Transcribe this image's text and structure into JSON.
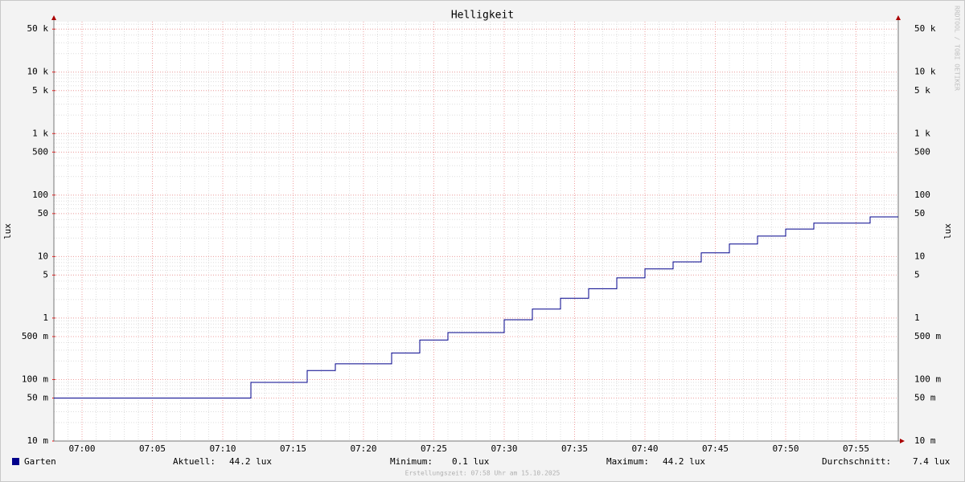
{
  "chart_data": {
    "type": "step",
    "title": "Helligkeit",
    "y_label": "lux",
    "watermark": "RRDTOOL / TOBI OETIKER",
    "log_scale": true,
    "grid": true,
    "xlim": [
      "06:58",
      "07:58"
    ],
    "xticks": [
      "07:00",
      "07:05",
      "07:10",
      "07:15",
      "07:20",
      "07:25",
      "07:30",
      "07:35",
      "07:40",
      "07:45",
      "07:50",
      "07:55"
    ],
    "ylim": [
      0.01,
      66000
    ],
    "yticks": [
      {
        "value": 0.01,
        "label": "10 m"
      },
      {
        "value": 0.05,
        "label": "50 m"
      },
      {
        "value": 0.1,
        "label": "100 m"
      },
      {
        "value": 0.5,
        "label": "500 m"
      },
      1,
      5,
      10,
      50,
      100,
      500,
      {
        "value": 1000,
        "label": "1 k"
      },
      {
        "value": 5000,
        "label": "5 k"
      },
      {
        "value": 10000,
        "label": "10 k"
      },
      {
        "value": 50000,
        "label": "50 k"
      }
    ],
    "x": [
      "06:58",
      "07:12",
      "07:16",
      "07:18",
      "07:22",
      "07:24",
      "07:26",
      "07:30",
      "07:32",
      "07:34",
      "07:36",
      "07:38",
      "07:40",
      "07:42",
      "07:44",
      "07:46",
      "07:48",
      "07:50",
      "07:52",
      "07:56"
    ],
    "series": [
      {
        "name": "Garten",
        "color": "#00008b",
        "values": [
          0.05,
          0.09,
          0.14,
          0.18,
          0.27,
          0.44,
          0.58,
          0.94,
          1.4,
          2.1,
          3.0,
          4.5,
          6.3,
          8.2,
          11.5,
          16,
          21.5,
          28,
          35,
          44.2
        ]
      }
    ],
    "stats": [
      {
        "label": "Aktuell:",
        "value": "44.2 lux"
      },
      {
        "label": "Minimum:",
        "value": "0.1 lux"
      },
      {
        "label": "Maximum:",
        "value": "44.2 lux"
      },
      {
        "label": "Durchschnitt:",
        "value": "7.4 lux"
      }
    ],
    "footer": "Erstellungszeit: 07:58 Uhr am 15.10.2025"
  }
}
